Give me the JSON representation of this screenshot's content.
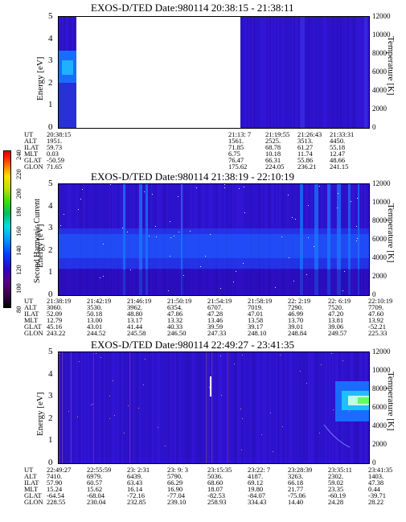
{
  "colorbar": {
    "label": "Second Harmonic Current",
    "ticks": [
      "80",
      "100",
      "120",
      "140",
      "160",
      "180",
      "200",
      "220",
      "240"
    ],
    "colors": [
      "#000000",
      "#3a0050",
      "#5a0080",
      "#3000c8",
      "#0040ff",
      "#00a0ff",
      "#00e0e0",
      "#00c060",
      "#40e000",
      "#c0e000",
      "#ffe000",
      "#ff8000",
      "#ff2000",
      "#e00000"
    ]
  },
  "panels": [
    {
      "title": "EXOS-D/TED   Date:980114   20:38:15 - 21:38:11",
      "ylabel_left": "Energy [eV]",
      "ylabel_right": "Temperature [K]",
      "yticks_left": [
        "5",
        "4",
        "3",
        "2",
        "1",
        "0"
      ],
      "yticks_right": [
        "12000",
        "10000",
        "8000",
        "6000",
        "4000",
        "2000",
        "0"
      ],
      "eph_labels": [
        "UT",
        "ALT",
        "ILAT",
        "MLT",
        "GLAT",
        "GLON"
      ],
      "eph_columns": [
        [
          "20:38:15",
          "1951.",
          "59.73",
          "0.03",
          "-50.59",
          "71.65"
        ],
        [
          "21:13: 7",
          "1561.",
          "71.85",
          "6.75",
          "76.47",
          "175.62"
        ],
        [
          "21:19:55",
          "2525.",
          "68.78",
          "10.18",
          "66.31",
          "224.05"
        ],
        [
          "21:26:43",
          "3513.",
          "61.27",
          "11.74",
          "55.86",
          "236.21"
        ],
        [
          "21:33:31",
          "4450.",
          "55.18",
          "12.47",
          "48.66",
          "241.15"
        ]
      ]
    },
    {
      "title": "EXOS-D/TED   Date:980114   21:38:19 - 22:10:19",
      "ylabel_left": "Energy [eV]",
      "ylabel_right": "Temperature [K]",
      "yticks_left": [
        "5",
        "4",
        "3",
        "2",
        "1",
        "0"
      ],
      "yticks_right": [
        "12000",
        "10000",
        "8000",
        "6000",
        "4000",
        "2000",
        "0"
      ],
      "eph_labels": [
        "UT",
        "ALT",
        "ILAT",
        "MLT",
        "GLAT",
        "GLON"
      ],
      "eph_columns": [
        [
          "21:38:19",
          "3060.",
          "52.09",
          "12.79",
          "45.16",
          "243.22"
        ],
        [
          "21:42:19",
          "3530.",
          "50.18",
          "13.00",
          "43.01",
          "244.52"
        ],
        [
          "21:46:19",
          "3962.",
          "48.80",
          "13.17",
          "41.44",
          "245.58"
        ],
        [
          "21:50:19",
          "6354.",
          "47.86",
          "13.32",
          "40.33",
          "246.50"
        ],
        [
          "21:54:19",
          "6707.",
          "47.28",
          "13.46",
          "39.59",
          "247.33"
        ],
        [
          "21:58:19",
          "7019.",
          "47.01",
          "13.58",
          "39.17",
          "248.10"
        ],
        [
          "22: 2:19",
          "7290.",
          "46.99",
          "13.70",
          "39.01",
          "248.84"
        ],
        [
          "22: 6:19",
          "7520.",
          "47.20",
          "13.81",
          "39.06",
          "249.57"
        ],
        [
          "22:10:19",
          "7709.",
          "47.60",
          "13.92",
          "-52.21",
          "225.33"
        ]
      ]
    },
    {
      "title": "EXOS-D/TED   Date:980114   22:49:27 - 23:41:35",
      "ylabel_left": "Energy [eV]",
      "ylabel_right": "Temperature [K]",
      "yticks_left": [
        "5",
        "4",
        "3",
        "2",
        "1",
        "0"
      ],
      "yticks_right": [
        "12000",
        "10000",
        "8000",
        "6000",
        "4000",
        "2000",
        "0"
      ],
      "eph_labels": [
        "UT",
        "ALT",
        "ILAT",
        "MLT",
        "GLAT",
        "GLON"
      ],
      "eph_columns": [
        [
          "22:49:27",
          "7410.",
          "57.90",
          "15.24",
          "-64.54",
          "228.55"
        ],
        [
          "22:55:59",
          "6979.",
          "60.57",
          "15.62",
          "-68.04",
          "230.04"
        ],
        [
          "23: 2:31",
          "6439.",
          "63.43",
          "16.14",
          "-72.16",
          "232.85"
        ],
        [
          "23: 9: 3",
          "5790.",
          "66.29",
          "16.90",
          "-77.04",
          "239.10"
        ],
        [
          "23:15:35",
          "5036.",
          "68.60",
          "18.07",
          "-82.53",
          "258.93"
        ],
        [
          "23:22: 7",
          "4187.",
          "69.12",
          "19.80",
          "-84.07",
          "334.43"
        ],
        [
          "23:28:39",
          "3263.",
          "66.18",
          "21.77",
          "-75.06",
          "14.40"
        ],
        [
          "23:35:11",
          "2302.",
          "59.02",
          "23.35",
          "-60.19",
          "24.28"
        ],
        [
          "23:41:35",
          "1403.",
          "47.38",
          "0.44",
          "-39.71",
          "28.22"
        ]
      ]
    }
  ],
  "chart_data": [
    {
      "type": "heatmap",
      "title": "EXOS-D/TED   Date:980114   20:38:15 - 21:38:11",
      "xlabel": "UT",
      "ylabel": "Energy [eV]",
      "ylabel_right": "Temperature [K]",
      "ylim": [
        0,
        5
      ],
      "ylim_right": [
        0,
        12000
      ],
      "x_tick_labels": [
        "20:38:15",
        "21:13: 7",
        "21:19:55",
        "21:26:43",
        "21:33:31"
      ],
      "data_gap": [
        "20:41",
        "21:13"
      ],
      "colorbar_label": "Second Harmonic Current",
      "colorbar_range": [
        80,
        240
      ]
    },
    {
      "type": "heatmap",
      "title": "EXOS-D/TED   Date:980114   21:38:19 - 22:10:19",
      "xlabel": "UT",
      "ylabel": "Energy [eV]",
      "ylabel_right": "Temperature [K]",
      "ylim": [
        0,
        5
      ],
      "ylim_right": [
        0,
        12000
      ],
      "x_tick_labels": [
        "21:38:19",
        "21:42:19",
        "21:46:19",
        "21:50:19",
        "21:54:19",
        "21:58:19",
        "22: 2:19",
        "22: 6:19",
        "22:10:19"
      ],
      "colorbar_label": "Second Harmonic Current",
      "colorbar_range": [
        80,
        240
      ]
    },
    {
      "type": "heatmap",
      "title": "EXOS-D/TED   Date:980114   22:49:27 - 23:41:35",
      "xlabel": "UT",
      "ylabel": "Energy [eV]",
      "ylabel_right": "Temperature [K]",
      "ylim": [
        0,
        5
      ],
      "ylim_right": [
        0,
        12000
      ],
      "x_tick_labels": [
        "22:49:27",
        "22:55:59",
        "23: 2:31",
        "23: 9: 3",
        "23:15:35",
        "23:22: 7",
        "23:28:39",
        "23:35:11",
        "23:41:35"
      ],
      "colorbar_label": "Second Harmonic Current",
      "colorbar_range": [
        80,
        240
      ]
    }
  ]
}
